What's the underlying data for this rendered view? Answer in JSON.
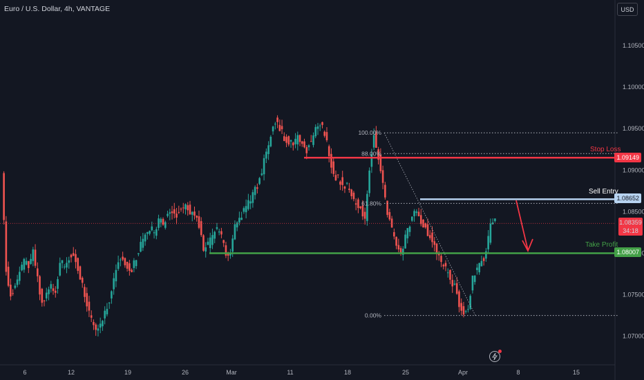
{
  "header": {
    "title": "Euro / U.S. Dollar, 4h, VANTAGE",
    "currency_button": "USD"
  },
  "colors": {
    "background": "#131722",
    "up": "#26a69a",
    "down": "#ef5350",
    "stop": "#f23645",
    "take_profit": "#43a047",
    "entry": "#b7d3f1",
    "grid": "#1e222d"
  },
  "levels": {
    "stop_loss": {
      "label": "Stop Loss",
      "price": "1.09149",
      "value": 1.0915
    },
    "sell_entry": {
      "label": "Sell Entry",
      "price": "1.08652",
      "value": 1.0865
    },
    "take_profit": {
      "label": "Take Profit",
      "price": "1.08007",
      "value": 1.08
    },
    "current": {
      "price": "1.08359",
      "countdown": "34:18",
      "value": 1.0836
    }
  },
  "fib": {
    "levels": [
      {
        "label": "100.00%",
        "value": 1.0945
      },
      {
        "label": "88.00%",
        "value": 1.092
      },
      {
        "label": "61.80%",
        "value": 1.086
      },
      {
        "label": "0.00%",
        "value": 1.0725
      }
    ]
  },
  "chart_data": {
    "type": "candlestick",
    "title": "Euro / U.S. Dollar, 4h, VANTAGE",
    "y_ticks": [
      "1.07000",
      "1.07500",
      "1.08000",
      "1.08500",
      "1.09000",
      "1.09500",
      "1.10000",
      "1.10500"
    ],
    "x_ticks": [
      "6",
      "12",
      "19",
      "26",
      "Mar",
      "11",
      "18",
      "25",
      "Apr",
      "8",
      "15"
    ],
    "ylim": [
      1.0675,
      1.1105
    ],
    "trend_path": [
      1.0895,
      1.078,
      1.075,
      1.076,
      1.0775,
      1.079,
      1.0785,
      1.08,
      1.077,
      1.074,
      1.075,
      1.076,
      1.0755,
      1.079,
      1.0785,
      1.0795,
      1.08,
      1.078,
      1.076,
      1.074,
      1.072,
      1.0705,
      1.0715,
      1.073,
      1.0745,
      1.077,
      1.079,
      1.0795,
      1.0785,
      1.078,
      1.0795,
      1.081,
      1.082,
      1.083,
      1.0825,
      1.084,
      1.0835,
      1.0845,
      1.085,
      1.0845,
      1.0855,
      1.086,
      1.085,
      1.0845,
      1.0835,
      1.08,
      1.081,
      1.082,
      1.083,
      1.082,
      1.08,
      1.08,
      1.083,
      1.084,
      1.085,
      1.086,
      1.087,
      1.088,
      1.09,
      1.092,
      1.0945,
      1.096,
      1.095,
      1.094,
      1.0935,
      1.093,
      1.094,
      1.093,
      1.0925,
      1.0935,
      1.095,
      1.0955,
      1.0945,
      1.092,
      1.0895,
      1.089,
      1.0885,
      1.088,
      1.087,
      1.086,
      1.0855,
      1.084,
      1.09,
      1.0945,
      1.0915,
      1.088,
      1.085,
      1.083,
      1.081,
      1.08,
      1.082,
      1.0835,
      1.085,
      1.0845,
      1.0835,
      1.0825,
      1.0815,
      1.08,
      1.079,
      1.078,
      1.077,
      1.076,
      1.074,
      1.073,
      1.0735,
      1.077,
      1.078,
      1.079,
      1.08,
      1.0835,
      1.084
    ],
    "annotations": [
      "Stop Loss",
      "Sell Entry",
      "Take Profit"
    ]
  }
}
